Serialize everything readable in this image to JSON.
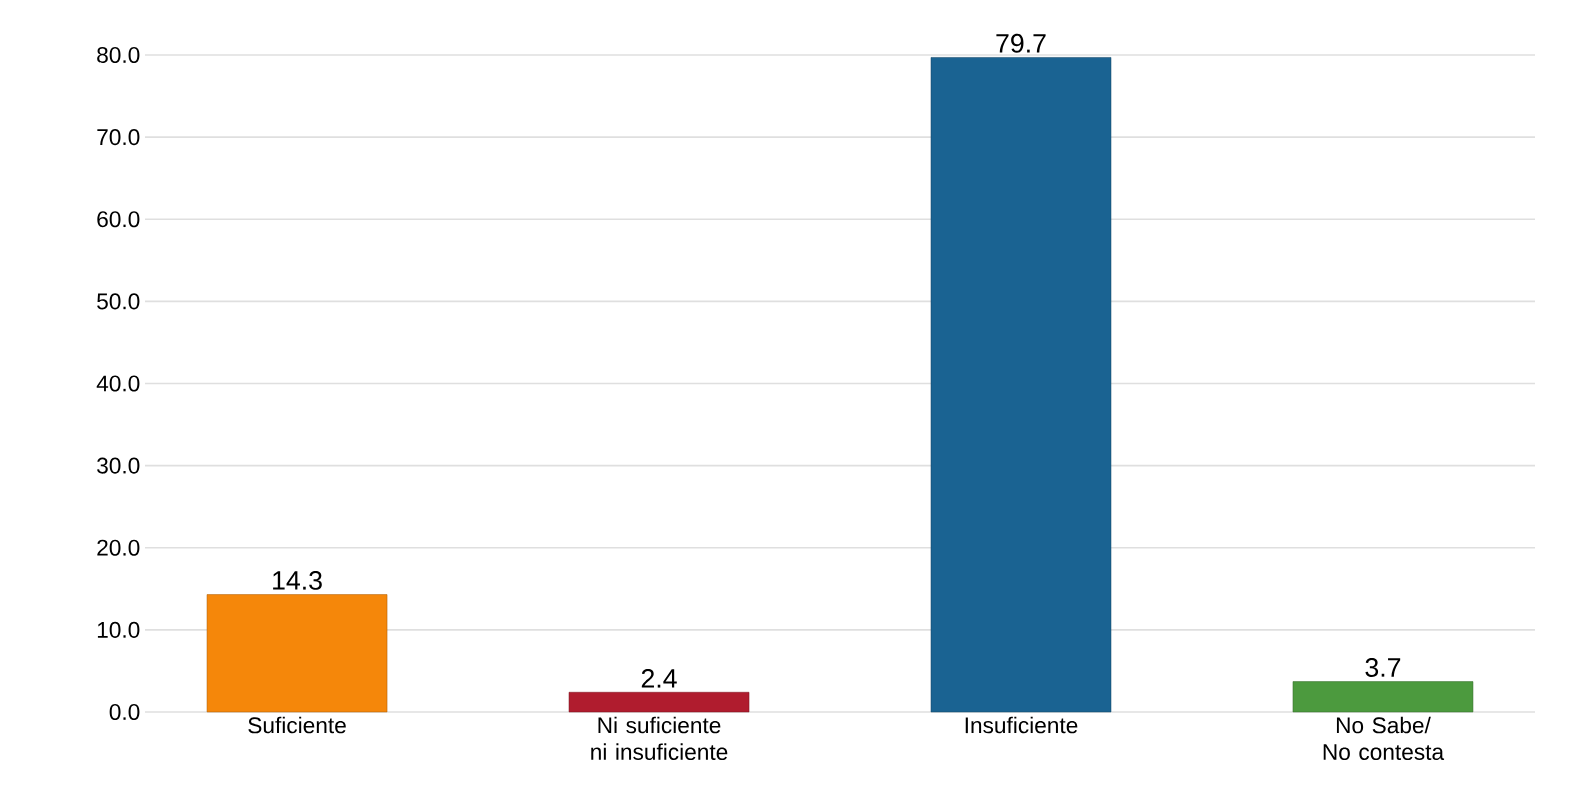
{
  "chart_data": {
    "type": "bar",
    "categories": [
      "Suficiente",
      "Ni suficiente ni insuficiente",
      "Insuficiente",
      "No Sabe/ No contesta"
    ],
    "values": [
      14.3,
      2.4,
      79.7,
      3.7
    ],
    "colors": [
      "#f5870a",
      "#b01c2e",
      "#1a6392",
      "#4c9a3e"
    ],
    "ylim": [
      0,
      80
    ],
    "yticks": [
      {
        "value": 0,
        "label": "0.0"
      },
      {
        "value": 10,
        "label": "10.0"
      },
      {
        "value": 20,
        "label": "20.0"
      },
      {
        "value": 30,
        "label": "30.0"
      },
      {
        "value": 40,
        "label": "40.0"
      },
      {
        "value": 50,
        "label": "50.0"
      },
      {
        "value": 60,
        "label": "60.0"
      },
      {
        "value": 70,
        "label": "70.0"
      },
      {
        "value": 80,
        "label": "80.0"
      }
    ],
    "grid": "y",
    "data_labels": true
  }
}
